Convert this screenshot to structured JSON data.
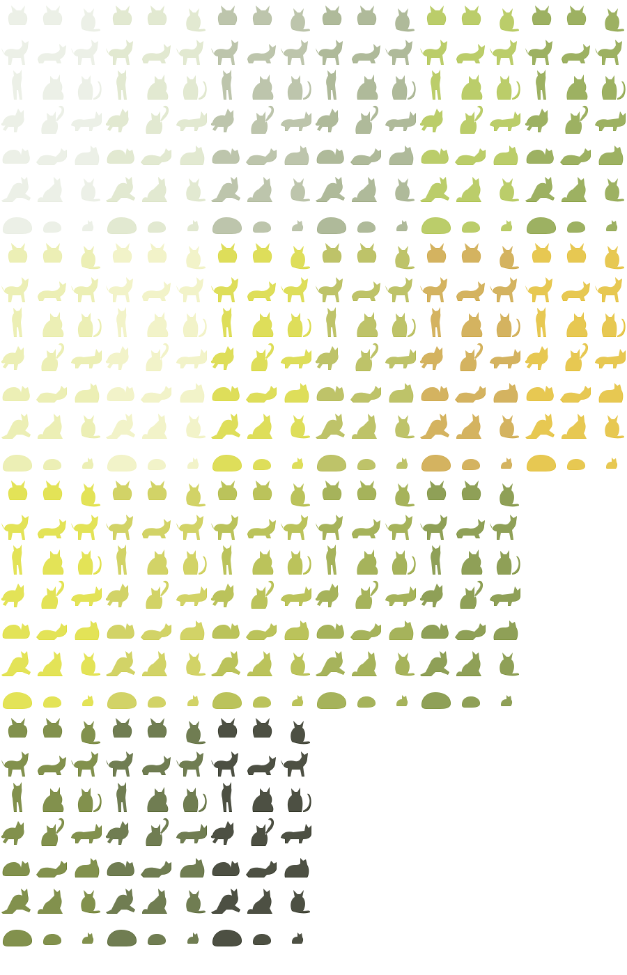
{
  "sheet": {
    "kind": "cat sprite sheet",
    "pose_rows": [
      "sitting-head",
      "walking-crouching",
      "standing-sitting",
      "jumping-curled-tail",
      "lying-loaf",
      "stretching-sitting",
      "sleeping-ball"
    ],
    "pose_icons": [
      [
        "cat-head-icon",
        "cat-head-icon",
        "cat-sit-small-icon"
      ],
      [
        "cat-walk-icon",
        "cat-crouch-icon",
        "cat-walk-icon"
      ],
      [
        "cat-stand-icon",
        "cat-sit-icon",
        "cat-sit-tail-icon"
      ],
      [
        "cat-jump-icon",
        "cat-curl-tail-icon",
        "cat-pounce-icon"
      ],
      [
        "cat-lie-icon",
        "cat-stretch-low-icon",
        "cat-loaf-icon"
      ],
      [
        "cat-stretch-icon",
        "cat-sit-up-icon",
        "cat-sit-small-icon"
      ],
      [
        "cat-sleep-big-icon",
        "cat-sleep-icon",
        "cat-sleep-small-icon"
      ]
    ],
    "blocks": [
      {
        "name": "pale-to-olive",
        "columns": 6,
        "row_offset": 0,
        "colors": [
          "#e6ebdf",
          "#d9e2c2",
          "#a8b391",
          "#96a47a",
          "#a6be3b",
          "#7e9830"
        ]
      },
      {
        "name": "lime-to-amber",
        "columns": 6,
        "row_offset": 7,
        "colors": [
          "#e6ea9d",
          "#eff0b9",
          "#d4d425",
          "#a9b03a",
          "#c79b2d",
          "#e0b61b"
        ]
      },
      {
        "name": "yellow-to-olive",
        "columns": 5,
        "row_offset": 14,
        "colors": [
          "#dada22",
          "#c4c636",
          "#a6b026",
          "#8a9b26",
          "#6b8221"
        ]
      },
      {
        "name": "dark-olive-to-black",
        "columns": 3,
        "row_offset": 21,
        "colors": [
          "#5a6e14",
          "#42541a",
          "#141806"
        ]
      }
    ]
  }
}
